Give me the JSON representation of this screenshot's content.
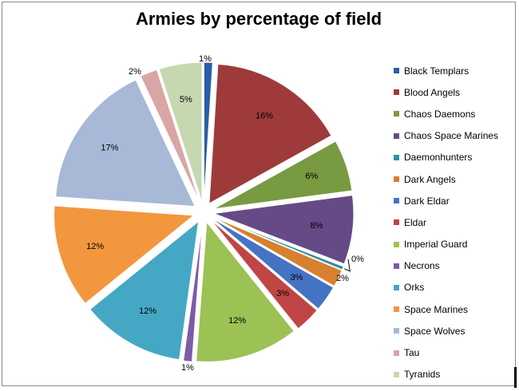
{
  "chart_data": {
    "type": "pie",
    "title": "Armies by percentage of field",
    "legend_position": "right",
    "slices": [
      {
        "name": "Black Templars",
        "value": 1,
        "label": "1%",
        "color": "#2b5ea4"
      },
      {
        "name": "Blood Angels",
        "value": 16,
        "label": "16%",
        "color": "#9e3b3a"
      },
      {
        "name": "Chaos Daemons",
        "value": 6,
        "label": "6%",
        "color": "#789a40"
      },
      {
        "name": "Chaos Space Marines",
        "value": 8,
        "label": "8%",
        "color": "#664a86"
      },
      {
        "name": "Daemonhunters",
        "value": 0.4,
        "label": "0%",
        "color": "#2f8fa6"
      },
      {
        "name": "Dark Angels",
        "value": 2,
        "label": "2%",
        "color": "#d7802e"
      },
      {
        "name": "Dark Eldar",
        "value": 3,
        "label": "3%",
        "color": "#4573c3"
      },
      {
        "name": "Eldar",
        "value": 3,
        "label": "3%",
        "color": "#c04545"
      },
      {
        "name": "Imperial Guard",
        "value": 12,
        "label": "12%",
        "color": "#9cc154"
      },
      {
        "name": "Necrons",
        "value": 1,
        "label": "1%",
        "color": "#7d5ca6"
      },
      {
        "name": "Orks",
        "value": 12,
        "label": "12%",
        "color": "#44a8c4"
      },
      {
        "name": "Space Marines",
        "value": 12,
        "label": "12%",
        "color": "#f3973f"
      },
      {
        "name": "Space Wolves",
        "value": 17,
        "label": "17%",
        "color": "#a8b8d7"
      },
      {
        "name": "Tau",
        "value": 2,
        "label": "2%",
        "color": "#d9a5a5"
      },
      {
        "name": "Tyranids",
        "value": 5,
        "label": "5%",
        "color": "#c6d8b0"
      }
    ]
  }
}
